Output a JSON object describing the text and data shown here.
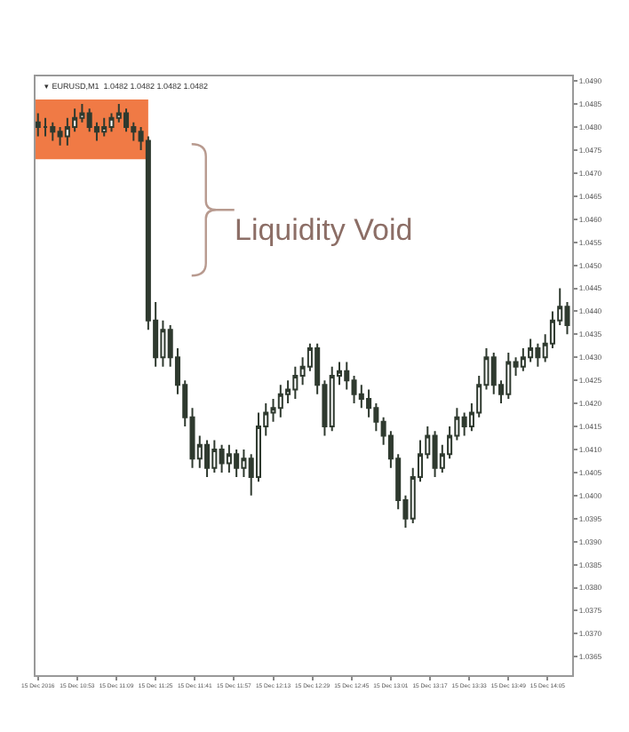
{
  "chart_data": {
    "type": "candlestick",
    "title": "▾ EURUSD,M1  1.0482 1.0482 1.0482 1.0482",
    "x": [
      "2016-12-15T10:37",
      "2016-12-15T10:40",
      "2016-12-15T10:43",
      "2016-12-15T10:46",
      "2016-12-15T10:49",
      "2016-12-15T10:52",
      "2016-12-15T10:55",
      "2016-12-15T10:58",
      "2016-12-15T11:01",
      "2016-12-15T11:04",
      "2016-12-15T11:07",
      "2016-12-15T11:10",
      "2016-12-15T11:13",
      "2016-12-15T11:16",
      "2016-12-15T11:19",
      "2016-12-15T11:22",
      "2016-12-15T11:25",
      "2016-12-15T11:28",
      "2016-12-15T11:31",
      "2016-12-15T11:34",
      "2016-12-15T11:37",
      "2016-12-15T11:40",
      "2016-12-15T11:43",
      "2016-12-15T11:46",
      "2016-12-15T11:49",
      "2016-12-15T11:52",
      "2016-12-15T11:55",
      "2016-12-15T11:58",
      "2016-12-15T12:01",
      "2016-12-15T12:04",
      "2016-12-15T12:07",
      "2016-12-15T12:10",
      "2016-12-15T12:13",
      "2016-12-15T12:16",
      "2016-12-15T12:19",
      "2016-12-15T12:22",
      "2016-12-15T12:25",
      "2016-12-15T12:28",
      "2016-12-15T12:31",
      "2016-12-15T12:34",
      "2016-12-15T12:37",
      "2016-12-15T12:40",
      "2016-12-15T12:43",
      "2016-12-15T12:46",
      "2016-12-15T12:49",
      "2016-12-15T12:52",
      "2016-12-15T12:55",
      "2016-12-15T12:58",
      "2016-12-15T13:01",
      "2016-12-15T13:04",
      "2016-12-15T13:07",
      "2016-12-15T13:10",
      "2016-12-15T13:13",
      "2016-12-15T13:16",
      "2016-12-15T13:19",
      "2016-12-15T13:22",
      "2016-12-15T13:25",
      "2016-12-15T13:28",
      "2016-12-15T13:31",
      "2016-12-15T13:34",
      "2016-12-15T13:37",
      "2016-12-15T13:40",
      "2016-12-15T13:43",
      "2016-12-15T13:46",
      "2016-12-15T13:49",
      "2016-12-15T13:52",
      "2016-12-15T13:55",
      "2016-12-15T13:58",
      "2016-12-15T14:01",
      "2016-12-15T14:04",
      "2016-12-15T14:07",
      "2016-12-15T14:10",
      "2016-12-15T14:13"
    ],
    "ohlc": [
      [
        1.0481,
        1.0483,
        1.0478,
        1.048
      ],
      [
        1.048,
        1.0482,
        1.0478,
        1.048
      ],
      [
        1.048,
        1.0481,
        1.0477,
        1.0479
      ],
      [
        1.0479,
        1.048,
        1.0476,
        1.0478
      ],
      [
        1.0478,
        1.0482,
        1.0476,
        1.048
      ],
      [
        1.048,
        1.0484,
        1.0479,
        1.0482
      ],
      [
        1.0482,
        1.0485,
        1.0481,
        1.0483
      ],
      [
        1.0483,
        1.0484,
        1.0479,
        1.048
      ],
      [
        1.048,
        1.0481,
        1.0477,
        1.0479
      ],
      [
        1.0479,
        1.0482,
        1.0478,
        1.048
      ],
      [
        1.048,
        1.0483,
        1.0479,
        1.0482
      ],
      [
        1.0482,
        1.0485,
        1.0481,
        1.0483
      ],
      [
        1.0483,
        1.0484,
        1.0479,
        1.048
      ],
      [
        1.048,
        1.0481,
        1.0477,
        1.0479
      ],
      [
        1.0479,
        1.048,
        1.0475,
        1.0477
      ],
      [
        1.0477,
        1.0478,
        1.0436,
        1.0438
      ],
      [
        1.0438,
        1.0442,
        1.0428,
        1.043
      ],
      [
        1.043,
        1.0438,
        1.0428,
        1.0436
      ],
      [
        1.0436,
        1.0437,
        1.0428,
        1.043
      ],
      [
        1.043,
        1.0432,
        1.0422,
        1.0424
      ],
      [
        1.0424,
        1.0425,
        1.0415,
        1.0417
      ],
      [
        1.0417,
        1.0419,
        1.0406,
        1.0408
      ],
      [
        1.0408,
        1.0413,
        1.0406,
        1.0411
      ],
      [
        1.0411,
        1.0412,
        1.0404,
        1.0406
      ],
      [
        1.0406,
        1.0412,
        1.0405,
        1.041
      ],
      [
        1.041,
        1.0411,
        1.0405,
        1.0407
      ],
      [
        1.0407,
        1.0411,
        1.0405,
        1.0409
      ],
      [
        1.0409,
        1.041,
        1.0404,
        1.0406
      ],
      [
        1.0406,
        1.041,
        1.0404,
        1.0408
      ],
      [
        1.0408,
        1.0409,
        1.04,
        1.0404
      ],
      [
        1.0404,
        1.0418,
        1.0403,
        1.0415
      ],
      [
        1.0415,
        1.042,
        1.0413,
        1.0418
      ],
      [
        1.0418,
        1.0421,
        1.0416,
        1.0419
      ],
      [
        1.0419,
        1.0424,
        1.0417,
        1.0422
      ],
      [
        1.0422,
        1.0425,
        1.042,
        1.0423
      ],
      [
        1.0423,
        1.0428,
        1.0421,
        1.0426
      ],
      [
        1.0426,
        1.043,
        1.0424,
        1.0428
      ],
      [
        1.0428,
        1.0433,
        1.0427,
        1.0432
      ],
      [
        1.0432,
        1.0433,
        1.0422,
        1.0424
      ],
      [
        1.0424,
        1.0425,
        1.0413,
        1.0415
      ],
      [
        1.0415,
        1.0428,
        1.0414,
        1.0426
      ],
      [
        1.0426,
        1.0429,
        1.0424,
        1.0427
      ],
      [
        1.0427,
        1.0429,
        1.0423,
        1.0425
      ],
      [
        1.0425,
        1.0426,
        1.042,
        1.0422
      ],
      [
        1.0422,
        1.0424,
        1.0419,
        1.0421
      ],
      [
        1.0421,
        1.0423,
        1.0417,
        1.0419
      ],
      [
        1.0419,
        1.042,
        1.0414,
        1.0416
      ],
      [
        1.0416,
        1.0417,
        1.0411,
        1.0413
      ],
      [
        1.0413,
        1.0414,
        1.0406,
        1.0408
      ],
      [
        1.0408,
        1.0409,
        1.0397,
        1.0399
      ],
      [
        1.0399,
        1.04,
        1.0393,
        1.0395
      ],
      [
        1.0395,
        1.0406,
        1.0394,
        1.0404
      ],
      [
        1.0404,
        1.0412,
        1.0403,
        1.0409
      ],
      [
        1.0409,
        1.0415,
        1.0408,
        1.0413
      ],
      [
        1.0413,
        1.0414,
        1.0404,
        1.0406
      ],
      [
        1.0406,
        1.0411,
        1.0405,
        1.0409
      ],
      [
        1.0409,
        1.0415,
        1.0408,
        1.0413
      ],
      [
        1.0413,
        1.0419,
        1.0412,
        1.0417
      ],
      [
        1.0417,
        1.0418,
        1.0413,
        1.0415
      ],
      [
        1.0415,
        1.042,
        1.0414,
        1.0418
      ],
      [
        1.0418,
        1.0426,
        1.0417,
        1.0424
      ],
      [
        1.0424,
        1.0432,
        1.0423,
        1.043
      ],
      [
        1.043,
        1.0431,
        1.0422,
        1.0424
      ],
      [
        1.0424,
        1.0425,
        1.042,
        1.0422
      ],
      [
        1.0422,
        1.0431,
        1.0421,
        1.0429
      ],
      [
        1.0429,
        1.043,
        1.0426,
        1.0428
      ],
      [
        1.0428,
        1.0432,
        1.0427,
        1.043
      ],
      [
        1.043,
        1.0434,
        1.0429,
        1.0432
      ],
      [
        1.0432,
        1.0433,
        1.0428,
        1.043
      ],
      [
        1.043,
        1.0435,
        1.0429,
        1.0433
      ],
      [
        1.0433,
        1.044,
        1.0432,
        1.0438
      ],
      [
        1.0438,
        1.0445,
        1.0437,
        1.0441
      ],
      [
        1.0441,
        1.0442,
        1.0435,
        1.0437
      ]
    ],
    "color": "#2f3a2f",
    "xlim": [
      "2016-12-15T10:36",
      "2016-12-15T14:15"
    ],
    "xticks": [
      {
        "value": "2016-12-15T10:37",
        "label": "15 Dec 2016"
      },
      {
        "value": "2016-12-15T10:53",
        "label": "15 Dec 10:53"
      },
      {
        "value": "2016-12-15T11:09",
        "label": "15 Dec 11:09"
      },
      {
        "value": "2016-12-15T11:25",
        "label": "15 Dec 11:25"
      },
      {
        "value": "2016-12-15T11:41",
        "label": "15 Dec 11:41"
      },
      {
        "value": "2016-12-15T11:57",
        "label": "15 Dec 11:57"
      },
      {
        "value": "2016-12-15T12:13",
        "label": "15 Dec 12:13"
      },
      {
        "value": "2016-12-15T12:29",
        "label": "15 Dec 12:29"
      },
      {
        "value": "2016-12-15T12:45",
        "label": "15 Dec 12:45"
      },
      {
        "value": "2016-12-15T13:01",
        "label": "15 Dec 13:01"
      },
      {
        "value": "2016-12-15T13:17",
        "label": "15 Dec 13:17"
      },
      {
        "value": "2016-12-15T13:33",
        "label": "15 Dec 13:33"
      },
      {
        "value": "2016-12-15T13:49",
        "label": "15 Dec 13:49"
      },
      {
        "value": "2016-12-15T14:05",
        "label": "15 Dec 14:05"
      }
    ],
    "ylim": [
      1.0361,
      1.0491
    ],
    "yticks": [
      1.0365,
      {
        "value": 1.037,
        "label": "1.0370"
      },
      1.0375,
      {
        "value": 1.038,
        "label": "1.0380"
      },
      1.0385,
      {
        "value": 1.039,
        "label": "1.0390"
      },
      1.0395,
      {
        "value": 1.04,
        "label": "1.0400"
      },
      1.0405,
      {
        "value": 1.041,
        "label": "1.0410"
      },
      1.0415,
      {
        "value": 1.042,
        "label": "1.0420"
      },
      1.0425,
      {
        "value": 1.043,
        "label": "1.0430"
      },
      1.0435,
      {
        "value": 1.044,
        "label": "1.0440"
      },
      1.0445,
      {
        "value": 1.045,
        "label": "1.0450"
      },
      1.0455,
      {
        "value": 1.046,
        "label": "1.0460"
      },
      1.0465,
      {
        "value": 1.047,
        "label": "1.0470"
      },
      1.0475,
      {
        "value": 1.048,
        "label": "1.0480"
      },
      1.0485,
      {
        "value": 1.049,
        "label": "1.0490"
      }
    ],
    "bands": [
      {
        "axis": "y",
        "from": 1.0473,
        "to": 1.0486,
        "label": null,
        "color": "#f07a45"
      }
    ],
    "annotations": [
      "Liquidity Void"
    ],
    "grid": false,
    "legend": false
  }
}
